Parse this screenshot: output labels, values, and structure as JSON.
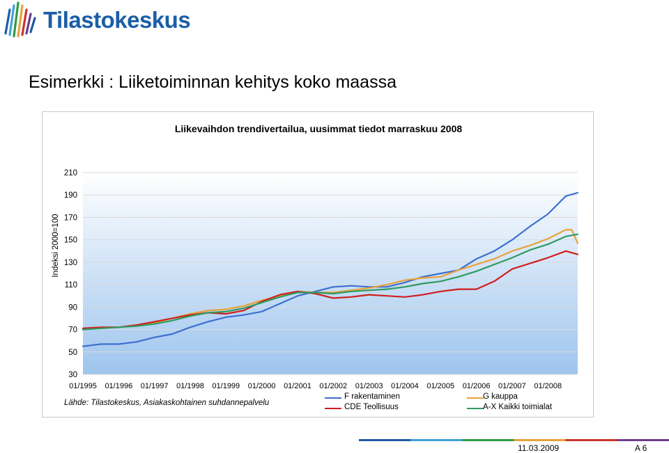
{
  "header": {
    "logo_text": "Tilastokeskus"
  },
  "page_title": "Esimerkki : Liiketoiminnan kehitys koko maassa",
  "source_note": "Lähde: Tilastokeskus, Asiakaskohtainen suhdannepalvelu",
  "footer": {
    "date": "11.03.2009",
    "page": "A 6"
  },
  "colors": {
    "logo_blue": "#1b5ea6",
    "footer_bar": [
      "#1f5aa6",
      "#3fa1d8",
      "#2f9a45",
      "#e8a13a",
      "#c7332b",
      "#6b3b8c"
    ],
    "plot_top": "#ffffff",
    "plot_bottom": "#9ec5ee"
  },
  "chart_data": {
    "type": "line",
    "title": "Liikevaihdon trendivertailua, uusimmat tiedot marraskuu 2008",
    "ylabel": "Indeksi 2000=100",
    "xlabel": "",
    "ylim": [
      30,
      210
    ],
    "yticks": [
      30,
      50,
      70,
      90,
      110,
      130,
      150,
      170,
      190,
      210
    ],
    "x_start": "01/1995",
    "x_end": "11/2008",
    "xtick_labels": [
      "01/1995",
      "01/1996",
      "01/1997",
      "01/1998",
      "01/1999",
      "01/2000",
      "01/2001",
      "01/2002",
      "01/2003",
      "01/2004",
      "01/2005",
      "01/2006",
      "01/2007",
      "01/2008"
    ],
    "grid": true,
    "legend_position": "bottom-right",
    "series": [
      {
        "name": "F rakentaminen",
        "color": "#3c6fd1",
        "x": [
          "01/1995",
          "07/1995",
          "01/1996",
          "07/1996",
          "01/1997",
          "07/1997",
          "01/1998",
          "07/1998",
          "01/1999",
          "07/1999",
          "01/2000",
          "07/2000",
          "01/2001",
          "07/2001",
          "01/2002",
          "07/2002",
          "01/2003",
          "07/2003",
          "01/2004",
          "07/2004",
          "01/2005",
          "07/2005",
          "01/2006",
          "07/2006",
          "01/2007",
          "07/2007",
          "01/2008",
          "07/2008",
          "11/2008"
        ],
        "y": [
          55,
          57,
          57,
          59,
          63,
          66,
          72,
          77,
          81,
          83,
          86,
          93,
          100,
          104,
          108,
          109,
          108,
          108,
          112,
          117,
          120,
          123,
          133,
          140,
          150,
          162,
          173,
          189,
          192
        ]
      },
      {
        "name": "G kauppa",
        "color": "#e8a13a",
        "x": [
          "01/1995",
          "07/1995",
          "01/1996",
          "07/1996",
          "01/1997",
          "07/1997",
          "01/1998",
          "07/1998",
          "01/1999",
          "07/1999",
          "01/2000",
          "07/2000",
          "01/2001",
          "07/2001",
          "01/2002",
          "07/2002",
          "01/2003",
          "07/2003",
          "01/2004",
          "07/2004",
          "01/2005",
          "07/2005",
          "01/2006",
          "07/2006",
          "01/2007",
          "07/2007",
          "01/2008",
          "07/2008",
          "09/2008",
          "11/2008"
        ],
        "y": [
          71,
          72,
          72,
          74,
          76,
          80,
          84,
          87,
          88,
          91,
          96,
          100,
          104,
          103,
          103,
          105,
          107,
          110,
          114,
          116,
          117,
          123,
          128,
          133,
          140,
          145,
          151,
          159,
          159,
          147
        ]
      },
      {
        "name": "CDE Teollisuus",
        "color": "#d01e1e",
        "x": [
          "01/1995",
          "07/1995",
          "01/1996",
          "07/1996",
          "01/1997",
          "07/1997",
          "01/1998",
          "07/1998",
          "01/1999",
          "07/1999",
          "01/2000",
          "07/2000",
          "01/2001",
          "07/2001",
          "01/2002",
          "07/2002",
          "01/2003",
          "07/2003",
          "01/2004",
          "07/2004",
          "01/2005",
          "07/2005",
          "01/2006",
          "07/2006",
          "01/2007",
          "07/2007",
          "01/2008",
          "07/2008",
          "11/2008"
        ],
        "y": [
          71,
          72,
          72,
          74,
          77,
          80,
          83,
          85,
          84,
          87,
          95,
          101,
          104,
          102,
          98,
          99,
          101,
          100,
          99,
          101,
          104,
          106,
          106,
          113,
          124,
          129,
          134,
          140,
          137
        ]
      },
      {
        "name": "A-X Kaikki toimialat",
        "color": "#2f9a60",
        "x": [
          "01/1995",
          "07/1995",
          "01/1996",
          "07/1996",
          "01/1997",
          "07/1997",
          "01/1998",
          "07/1998",
          "01/1999",
          "07/1999",
          "01/2000",
          "07/2000",
          "01/2001",
          "07/2001",
          "01/2002",
          "07/2002",
          "01/2003",
          "07/2003",
          "01/2004",
          "07/2004",
          "01/2005",
          "07/2005",
          "01/2006",
          "07/2006",
          "01/2007",
          "07/2007",
          "01/2008",
          "07/2008",
          "11/2008"
        ],
        "y": [
          70,
          71,
          72,
          73,
          75,
          78,
          82,
          85,
          86,
          89,
          94,
          99,
          103,
          103,
          102,
          104,
          105,
          106,
          108,
          111,
          113,
          117,
          122,
          128,
          134,
          141,
          146,
          153,
          155
        ]
      }
    ]
  }
}
